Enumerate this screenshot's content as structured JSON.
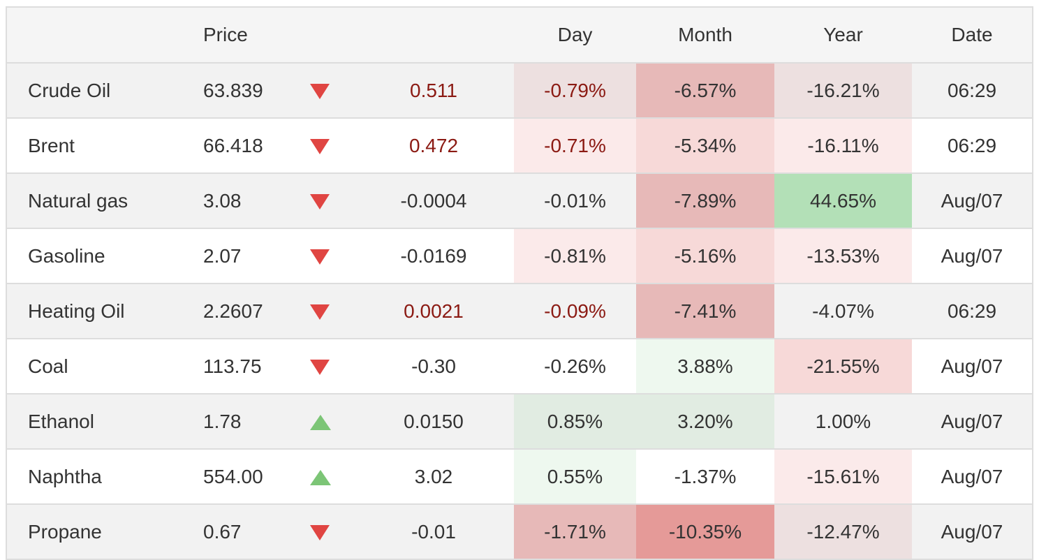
{
  "headers": {
    "name": "",
    "price": "Price",
    "arrow": "",
    "change": "",
    "day": "Day",
    "month": "Month",
    "year": "Year",
    "date": "Date"
  },
  "colors": {
    "down_arrow": "#e04542",
    "up_arrow": "#7cc576",
    "dark_red_text": "#8b1a13",
    "heat_red_strong": "#e59a98",
    "heat_red_medium": "#e7b9b8",
    "heat_red_light": "#f7d9d8",
    "heat_red_faint": "#fbeaea",
    "heat_green_strong": "#b3e0b7",
    "heat_green_light": "#e1ece2",
    "heat_green_faint": "#eef8ef"
  },
  "rows": [
    {
      "name": "Crude Oil",
      "price": "63.839",
      "direction": "down",
      "change": "0.511",
      "day": "-0.79%",
      "month": "-6.57%",
      "year": "-16.21%",
      "date": "06:29"
    },
    {
      "name": "Brent",
      "price": "66.418",
      "direction": "down",
      "change": "0.472",
      "day": "-0.71%",
      "month": "-5.34%",
      "year": "-16.11%",
      "date": "06:29"
    },
    {
      "name": "Natural gas",
      "price": "3.08",
      "direction": "down",
      "change": "-0.0004",
      "day": "-0.01%",
      "month": "-7.89%",
      "year": "44.65%",
      "date": "Aug/07"
    },
    {
      "name": "Gasoline",
      "price": "2.07",
      "direction": "down",
      "change": "-0.0169",
      "day": "-0.81%",
      "month": "-5.16%",
      "year": "-13.53%",
      "date": "Aug/07"
    },
    {
      "name": "Heating Oil",
      "price": "2.2607",
      "direction": "down",
      "change": "0.0021",
      "day": "-0.09%",
      "month": "-7.41%",
      "year": "-4.07%",
      "date": "06:29"
    },
    {
      "name": "Coal",
      "price": "113.75",
      "direction": "down",
      "change": "-0.30",
      "day": "-0.26%",
      "month": "3.88%",
      "year": "-21.55%",
      "date": "Aug/07"
    },
    {
      "name": "Ethanol",
      "price": "1.78",
      "direction": "up",
      "change": "0.0150",
      "day": "0.85%",
      "month": "3.20%",
      "year": "1.00%",
      "date": "Aug/07"
    },
    {
      "name": "Naphtha",
      "price": "554.00",
      "direction": "up",
      "change": "3.02",
      "day": "0.55%",
      "month": "-1.37%",
      "year": "-15.61%",
      "date": "Aug/07"
    },
    {
      "name": "Propane",
      "price": "0.67",
      "direction": "down",
      "change": "-0.01",
      "day": "-1.71%",
      "month": "-10.35%",
      "year": "-12.47%",
      "date": "Aug/07"
    }
  ]
}
